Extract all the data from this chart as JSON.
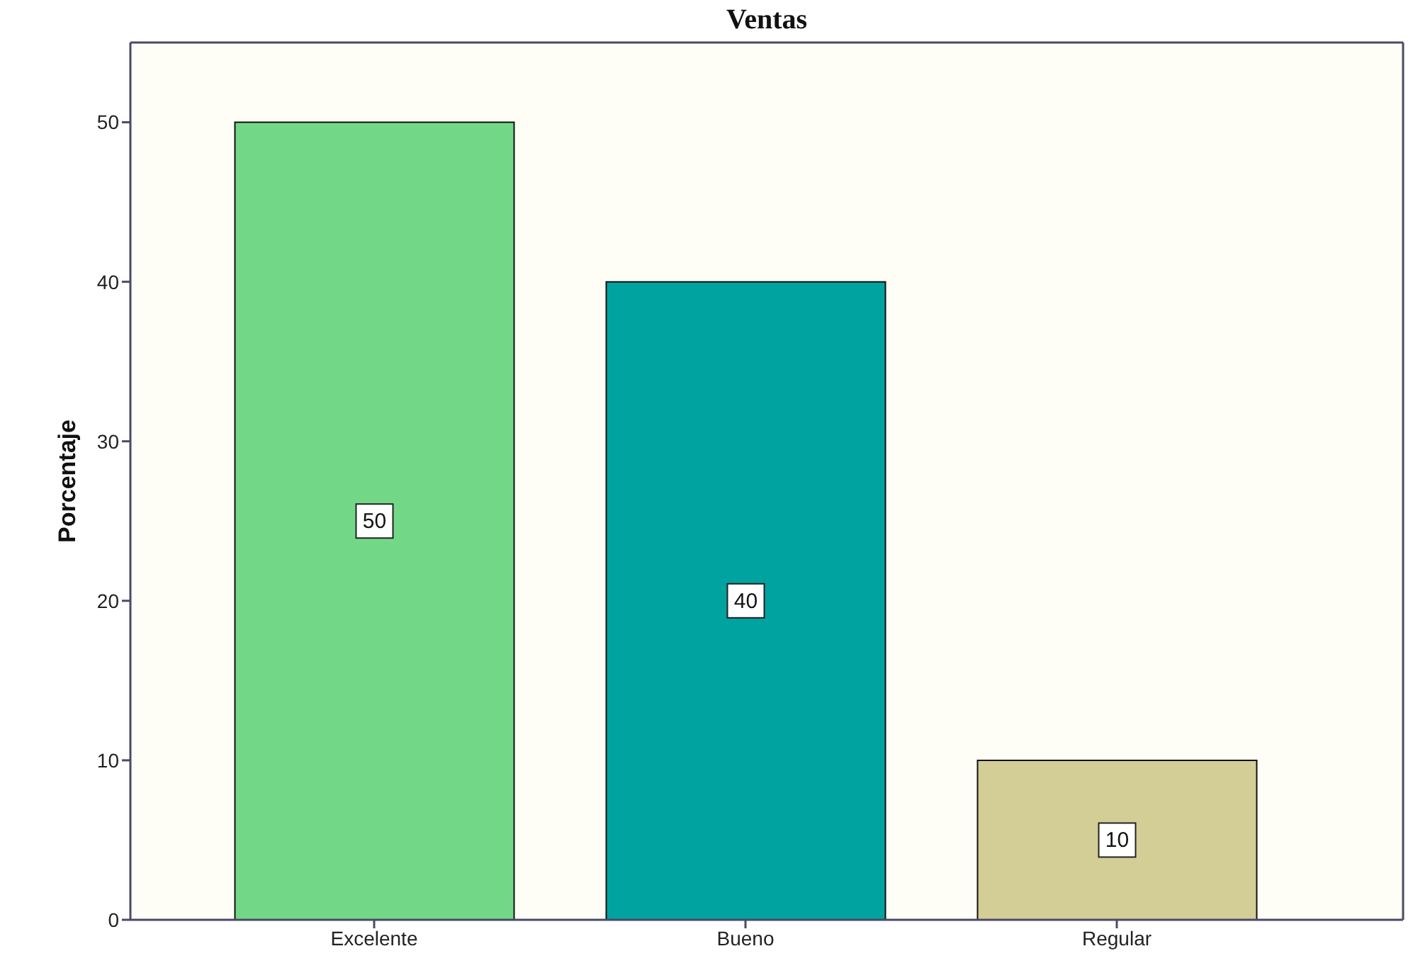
{
  "chart_data": {
    "type": "bar",
    "title": "Ventas",
    "ylabel": "Porcentaje",
    "categories": [
      "Excelente",
      "Bueno",
      "Regular"
    ],
    "values": [
      50,
      40,
      10
    ],
    "colors": [
      "#72d888",
      "#00a39f",
      "#d3cd96"
    ],
    "ylim": [
      0,
      55
    ],
    "yticks": [
      0,
      10,
      20,
      30,
      40,
      50
    ],
    "data_labels": true
  }
}
